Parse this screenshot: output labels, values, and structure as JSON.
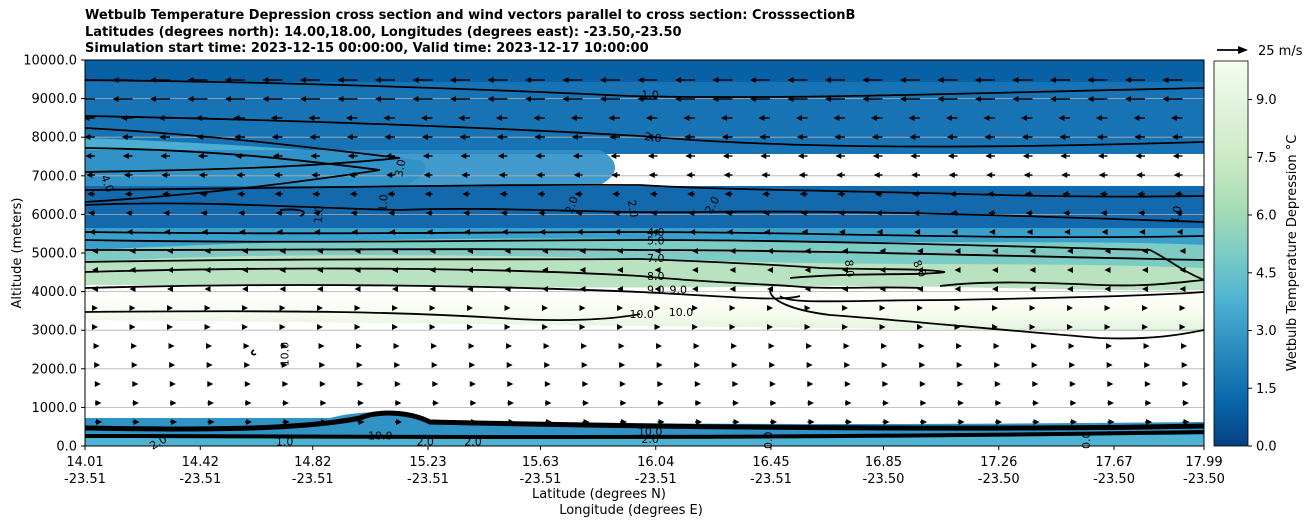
{
  "title": {
    "line1": "Wetbulb Temperature Depression cross section and wind vectors parallel to cross section: CrosssectionB",
    "line2": "Latitudes (degrees north): 14.00,18.00, Longitudes (degrees east): -23.50,-23.50",
    "line3": "Simulation start time: 2023-12-15 00:00:00, Valid time: 2023-12-17 10:00:00"
  },
  "chart_data": {
    "type": "heatmap",
    "ylabel": "Altitude (meters)",
    "xlabel_lat": "Latitude (degrees N)",
    "xlabel_lon": "Longitude (degrees E)",
    "ylim": [
      0,
      10000
    ],
    "yticks": [
      "0.0",
      "1000.0",
      "2000.0",
      "3000.0",
      "4000.0",
      "5000.0",
      "6000.0",
      "7000.0",
      "8000.0",
      "9000.0",
      "10000.0"
    ],
    "ytick_values": [
      0,
      1000,
      2000,
      3000,
      4000,
      5000,
      6000,
      7000,
      8000,
      9000,
      10000
    ],
    "xlim": [
      14.01,
      17.99
    ],
    "xtick_values": [
      14.01,
      14.42,
      14.82,
      15.23,
      15.63,
      16.04,
      16.45,
      16.85,
      17.26,
      17.67,
      17.99
    ],
    "xticks_lat": [
      "14.01",
      "14.42",
      "14.82",
      "15.23",
      "15.63",
      "16.04",
      "16.45",
      "16.85",
      "17.26",
      "17.67",
      "17.99"
    ],
    "xticks_lon": [
      "-23.51",
      "-23.51",
      "-23.51",
      "-23.51",
      "-23.51",
      "-23.51",
      "-23.51",
      "-23.50",
      "-23.50",
      "-23.50",
      "-23.50"
    ],
    "grid": "horizontal",
    "colorbar": {
      "label": "Wetbulb Temperature Depression °C",
      "range": [
        0,
        10
      ],
      "ticks": [
        "0.0",
        "1.5",
        "3.0",
        "4.5",
        "6.0",
        "7.5",
        "9.0"
      ],
      "tick_values": [
        0,
        1.5,
        3,
        4.5,
        6,
        7.5,
        9
      ],
      "colormap": "GnBu_r",
      "colors": [
        "#084081",
        "#0868ac",
        "#2b8cbe",
        "#4eb3d3",
        "#7bccc4",
        "#a8ddb5",
        "#ccebc5",
        "#e0f3db",
        "#f7fcf0"
      ]
    },
    "quiver_key": "25 m/s",
    "contour_labels": [
      {
        "text": "1.0",
        "lat": 16.02,
        "alt": 9100,
        "rot": 0
      },
      {
        "text": "2.0",
        "lat": 16.03,
        "alt": 8000,
        "rot": 8
      },
      {
        "text": "3.0",
        "lat": 15.13,
        "alt": 7200,
        "rot": -80
      },
      {
        "text": "4.0",
        "lat": 14.09,
        "alt": 6800,
        "rot": 70
      },
      {
        "text": "1.0",
        "lat": 14.84,
        "alt": 6000,
        "rot": -85
      },
      {
        "text": "1.0",
        "lat": 15.07,
        "alt": 6300,
        "rot": -85
      },
      {
        "text": "2.0",
        "lat": 15.74,
        "alt": 6250,
        "rot": -70
      },
      {
        "text": "2.0",
        "lat": 15.96,
        "alt": 6150,
        "rot": 80
      },
      {
        "text": "2.0",
        "lat": 16.24,
        "alt": 6250,
        "rot": -60
      },
      {
        "text": "1.0",
        "lat": 17.89,
        "alt": 6000,
        "rot": -80
      },
      {
        "text": "4.0",
        "lat": 16.04,
        "alt": 5550,
        "rot": 0
      },
      {
        "text": "5.0",
        "lat": 16.04,
        "alt": 5330,
        "rot": 0
      },
      {
        "text": "7.0",
        "lat": 16.04,
        "alt": 4870,
        "rot": 0
      },
      {
        "text": "8.0",
        "lat": 16.04,
        "alt": 4410,
        "rot": 0
      },
      {
        "text": "9.0",
        "lat": 16.04,
        "alt": 4050,
        "rot": 0
      },
      {
        "text": "9.0",
        "lat": 16.12,
        "alt": 4050,
        "rot": 0
      },
      {
        "text": "8.0",
        "lat": 16.73,
        "alt": 4600,
        "rot": 85
      },
      {
        "text": "8.0",
        "lat": 16.98,
        "alt": 4600,
        "rot": 65
      },
      {
        "text": "10.0",
        "lat": 15.99,
        "alt": 3420,
        "rot": 0
      },
      {
        "text": "10.0",
        "lat": 16.13,
        "alt": 3470,
        "rot": 0
      },
      {
        "text": "10.0",
        "lat": 14.72,
        "alt": 2380,
        "rot": -90
      },
      {
        "text": "10.0",
        "lat": 15.06,
        "alt": 270,
        "rot": 0
      },
      {
        "text": "2.0",
        "lat": 14.27,
        "alt": 100,
        "rot": -30
      },
      {
        "text": "1.0",
        "lat": 14.72,
        "alt": 120,
        "rot": 0
      },
      {
        "text": "2.0",
        "lat": 15.22,
        "alt": 120,
        "rot": 0
      },
      {
        "text": "2.0",
        "lat": 15.39,
        "alt": 120,
        "rot": 0
      },
      {
        "text": "10.0",
        "lat": 16.02,
        "alt": 380,
        "rot": 0
      },
      {
        "text": "2.0",
        "lat": 16.02,
        "alt": 180,
        "rot": 0
      },
      {
        "text": "0.0",
        "lat": 16.44,
        "alt": 150,
        "rot": -90
      },
      {
        "text": "0.0",
        "lat": 17.57,
        "alt": 150,
        "rot": -90
      }
    ]
  }
}
